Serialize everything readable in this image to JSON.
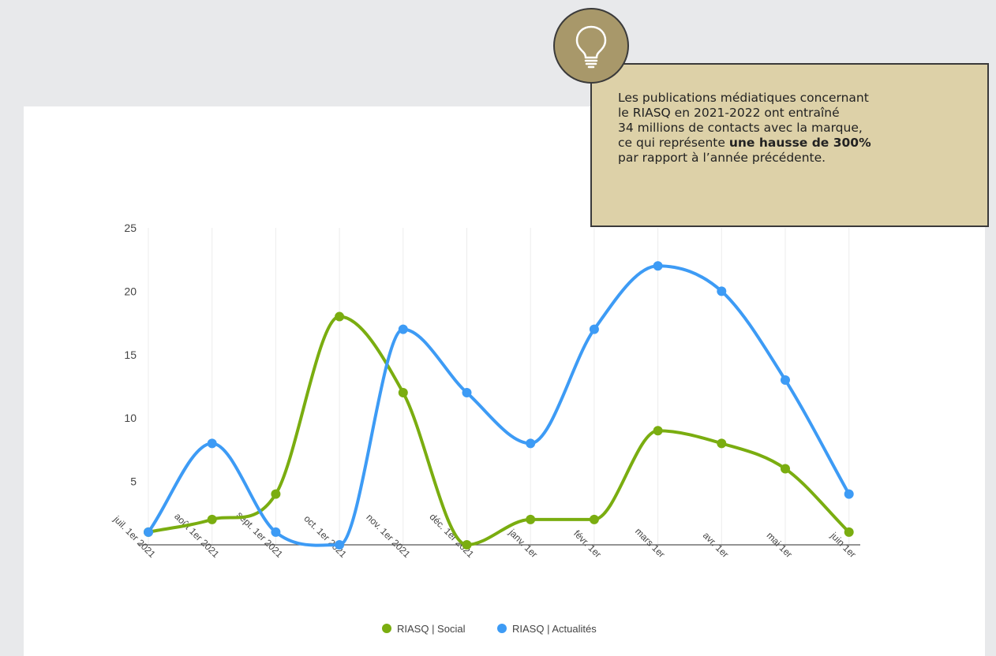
{
  "callout": {
    "line1": "Les publications médiatiques concernant",
    "line2": "le RIASQ en 2021-2022 ont entraîné",
    "line3": "34 millions de contacts avec la marque,",
    "line4_before": "ce qui représente ",
    "line4_bold": "une hausse de 300%",
    "line5": "par rapport à l’année précédente.",
    "icon": "lightbulb-icon"
  },
  "chart_data": {
    "type": "line",
    "smooth": true,
    "categories": [
      "juil. 1er 2021",
      "août 1er 2021",
      "sept. 1er 2021",
      "oct. 1er 2021",
      "nov. 1er 2021",
      "déc. 1er 2021",
      "janv. 1er",
      "févr. 1er",
      "mars 1er",
      "avr. 1er",
      "mai 1er",
      "juin 1er"
    ],
    "yticks": [
      5,
      10,
      15,
      20,
      25
    ],
    "ylim": [
      0,
      25
    ],
    "grid": "vertical",
    "legend_position": "bottom-center",
    "series": [
      {
        "name": "RIASQ | Social",
        "color": "#7aad10",
        "values": [
          1,
          2,
          4,
          18,
          12,
          0,
          2,
          2,
          9,
          8,
          6,
          1
        ]
      },
      {
        "name": "RIASQ | Actualités",
        "color": "#3d9bf5",
        "values": [
          1,
          8,
          1,
          0,
          17,
          12,
          8,
          17,
          22,
          20,
          13,
          4
        ]
      }
    ]
  }
}
